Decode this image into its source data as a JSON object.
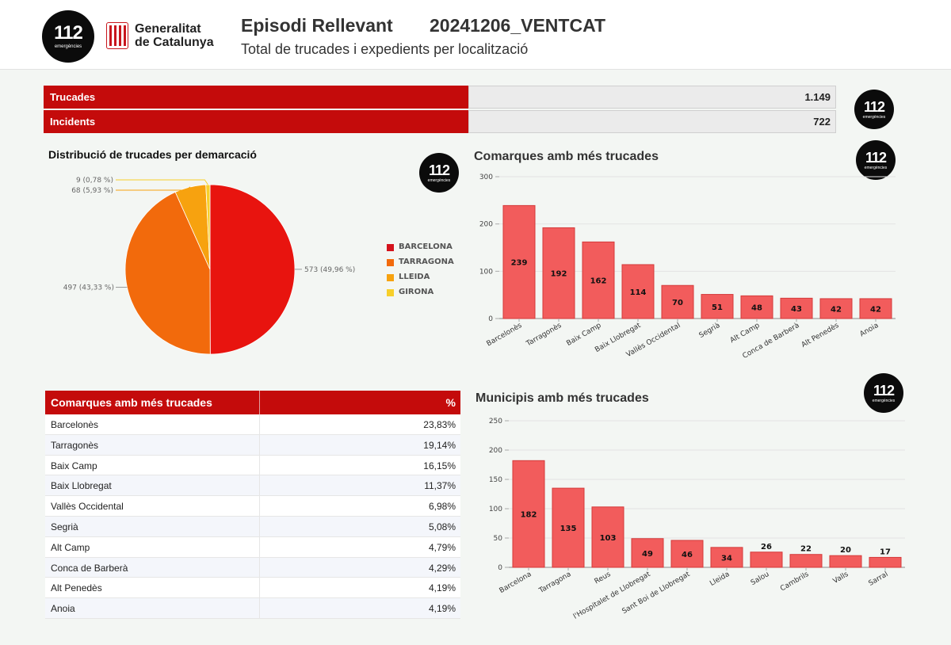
{
  "header": {
    "logo": {
      "number": "112",
      "sub": "emergències"
    },
    "gencat": {
      "line1": "Generalitat",
      "line2": "de Catalunya"
    },
    "title": "Episodi Rellevant",
    "code": "20241206_VENTCAT",
    "subtitle": "Total de trucades i expedients per localització"
  },
  "summary": [
    {
      "label": "Trucades",
      "value": "1.149"
    },
    {
      "label": "Incidents",
      "value": "722"
    }
  ],
  "pie": {
    "title": "Distribució de trucades per demarcació",
    "labels": [
      "573 (49,96 %)",
      "497 (43,33 %)",
      "68 (5,93 %)",
      "9 (0,78 %)"
    ]
  },
  "table": {
    "header": {
      "name": "Comarques amb més trucades",
      "pct": "%"
    },
    "rows": [
      {
        "name": "Barcelonès",
        "pct": "23,83%"
      },
      {
        "name": "Tarragonès",
        "pct": "19,14%"
      },
      {
        "name": "Baix Camp",
        "pct": "16,15%"
      },
      {
        "name": "Baix Llobregat",
        "pct": "11,37%"
      },
      {
        "name": "Vallès Occidental",
        "pct": "6,98%"
      },
      {
        "name": "Segrià",
        "pct": "5,08%"
      },
      {
        "name": "Alt Camp",
        "pct": "4,79%"
      },
      {
        "name": "Conca de Barberà",
        "pct": "4,29%"
      },
      {
        "name": "Alt Penedès",
        "pct": "4,19%"
      },
      {
        "name": "Anoia",
        "pct": "4,19%"
      }
    ]
  },
  "colors": {
    "header_red": "#c40b0b",
    "bar_fill": "#f25c5c",
    "bar_stroke": "#d43a3a",
    "barcelona": "#e8140f",
    "tarragona": "#f26a0c",
    "lleida": "#f7a20f",
    "girona": "#f7cf2a"
  },
  "chart_data": [
    {
      "type": "pie",
      "title": "Distribució de trucades per demarcació",
      "slices": [
        {
          "name": "BARCELONA",
          "value": 573,
          "percent": 49.96,
          "color": "#e8140f"
        },
        {
          "name": "TARRAGONA",
          "value": 497,
          "percent": 43.33,
          "color": "#f26a0c"
        },
        {
          "name": "LLEIDA",
          "value": 68,
          "percent": 5.93,
          "color": "#f7a20f"
        },
        {
          "name": "GIRONA",
          "value": 9,
          "percent": 0.78,
          "color": "#f7cf2a"
        }
      ],
      "legend": "right"
    },
    {
      "type": "bar",
      "title": "Comarques amb més trucades",
      "categories": [
        "Barcelonès",
        "Tarragonès",
        "Baix Camp",
        "Baix Llobregat",
        "Vallès Occidental",
        "Segrià",
        "Alt Camp",
        "Conca de Barberà",
        "Alt Penedès",
        "Anoia"
      ],
      "values": [
        239,
        192,
        162,
        114,
        70,
        51,
        48,
        43,
        42,
        42
      ],
      "ylim": [
        0,
        300
      ],
      "yticks": [
        0,
        100,
        200,
        300
      ],
      "grid": true
    },
    {
      "type": "bar",
      "title": "Municipis amb més trucades",
      "categories": [
        "Barcelona",
        "Tarragona",
        "Reus",
        "l'Hospitalet de Llobregat",
        "Sant Boi de Llobregat",
        "Lleida",
        "Salou",
        "Cambrils",
        "Valls",
        "Sarral"
      ],
      "values": [
        182,
        135,
        103,
        49,
        46,
        34,
        26,
        22,
        20,
        17
      ],
      "ylim": [
        0,
        250
      ],
      "yticks": [
        0,
        50,
        100,
        150,
        200,
        250
      ],
      "grid": true
    }
  ]
}
